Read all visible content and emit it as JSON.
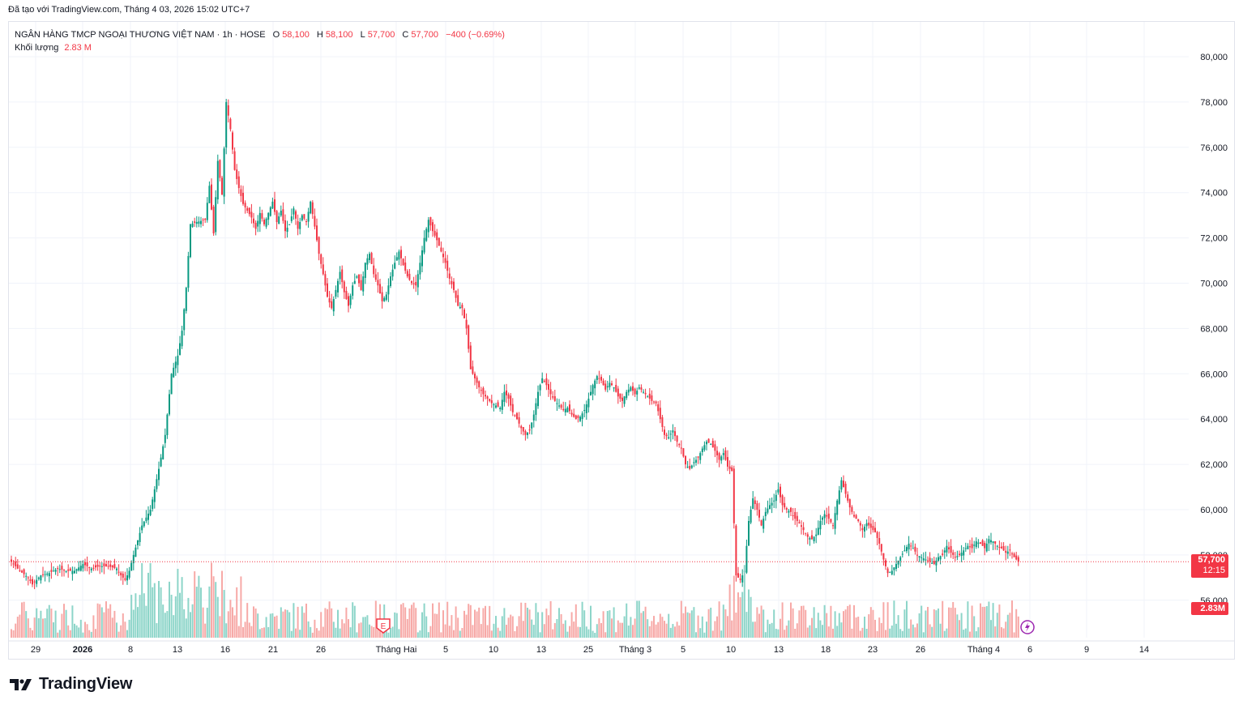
{
  "header": {
    "credit": "Đã tạo với TradingView.com, Tháng 4 03, 2026 15:02 UTC+7"
  },
  "legend": {
    "symbol": "NGÂN HÀNG TMCP NGOẠI THƯƠNG VIỆT NAM · 1h · HOSE",
    "o_label": "O",
    "o_value": "58,100",
    "h_label": "H",
    "h_value": "58,100",
    "l_label": "L",
    "l_value": "57,700",
    "c_label": "C",
    "c_value": "57,700",
    "change": "−400 (−0.69%)",
    "volume_label": "Khối lượng",
    "volume_value": "2.83 M"
  },
  "price_tags": {
    "last_price": "57,700",
    "countdown": "12:15",
    "volume": "2.83M"
  },
  "footer": {
    "brand": "TradingView"
  },
  "colors": {
    "up": "#089981",
    "down": "#f23645",
    "vol_up": "#8dd5c9",
    "vol_down": "#f7a9a7",
    "grid": "#f0f3fa",
    "axis_text": "#131722"
  },
  "chart_data": {
    "type": "candlestick",
    "y_axis_ticks": [
      "80,000",
      "78,000",
      "76,000",
      "74,000",
      "72,000",
      "70,000",
      "68,000",
      "66,000",
      "64,000",
      "62,000",
      "60,000",
      "58,000",
      "56,000"
    ],
    "y_tick_values": [
      80000,
      78000,
      76000,
      74000,
      72000,
      70000,
      68000,
      66000,
      64000,
      62000,
      60000,
      58000,
      56000
    ],
    "ylim": [
      55200,
      81100
    ],
    "x_axis_labels": [
      "29",
      "2026",
      "8",
      "13",
      "16",
      "21",
      "26",
      "Tháng Hai",
      "5",
      "10",
      "13",
      "25",
      "Tháng 3",
      "5",
      "10",
      "13",
      "18",
      "23",
      "26",
      "Tháng 4",
      "6",
      "9",
      "14"
    ],
    "x_label_bold": [
      "2026"
    ],
    "close_path": [
      [
        0,
        57700
      ],
      [
        4,
        57300
      ],
      [
        8,
        57000
      ],
      [
        10,
        56700
      ],
      [
        14,
        57100
      ],
      [
        18,
        57200
      ],
      [
        22,
        57400
      ],
      [
        26,
        57300
      ],
      [
        30,
        57300
      ],
      [
        34,
        57600
      ],
      [
        38,
        57400
      ],
      [
        42,
        57500
      ],
      [
        46,
        57500
      ],
      [
        50,
        57400
      ],
      [
        52,
        57100
      ],
      [
        54,
        56900
      ],
      [
        56,
        57300
      ],
      [
        58,
        58000
      ],
      [
        62,
        59300
      ],
      [
        66,
        60000
      ],
      [
        70,
        61800
      ],
      [
        73,
        63300
      ],
      [
        76,
        66000
      ],
      [
        79,
        66800
      ],
      [
        81,
        67900
      ],
      [
        83,
        69800
      ],
      [
        85,
        72600
      ],
      [
        88,
        72700
      ],
      [
        92,
        72800
      ],
      [
        94,
        74300
      ],
      [
        96,
        72200
      ],
      [
        98,
        75400
      ],
      [
        100,
        73900
      ],
      [
        102,
        78000
      ],
      [
        104,
        76800
      ],
      [
        106,
        75000
      ],
      [
        108,
        74200
      ],
      [
        110,
        73500
      ],
      [
        112,
        73200
      ],
      [
        114,
        72900
      ],
      [
        116,
        72400
      ],
      [
        118,
        73100
      ],
      [
        120,
        72600
      ],
      [
        124,
        73600
      ],
      [
        126,
        72700
      ],
      [
        128,
        73200
      ],
      [
        130,
        72300
      ],
      [
        132,
        72600
      ],
      [
        134,
        73300
      ],
      [
        136,
        72400
      ],
      [
        138,
        73000
      ],
      [
        140,
        72700
      ],
      [
        142,
        73600
      ],
      [
        144,
        72500
      ],
      [
        146,
        71300
      ],
      [
        148,
        70400
      ],
      [
        150,
        69400
      ],
      [
        152,
        68900
      ],
      [
        154,
        69700
      ],
      [
        156,
        70500
      ],
      [
        158,
        69600
      ],
      [
        160,
        69000
      ],
      [
        162,
        69900
      ],
      [
        164,
        70300
      ],
      [
        166,
        69700
      ],
      [
        168,
        70900
      ],
      [
        170,
        71300
      ],
      [
        172,
        70400
      ],
      [
        174,
        69900
      ],
      [
        176,
        69200
      ],
      [
        178,
        69500
      ],
      [
        180,
        70300
      ],
      [
        182,
        70900
      ],
      [
        184,
        71400
      ],
      [
        186,
        70800
      ],
      [
        188,
        70300
      ],
      [
        190,
        70000
      ],
      [
        192,
        69900
      ],
      [
        194,
        70900
      ],
      [
        196,
        72000
      ],
      [
        198,
        72800
      ],
      [
        200,
        72300
      ],
      [
        202,
        71900
      ],
      [
        204,
        71400
      ],
      [
        206,
        70900
      ],
      [
        208,
        70200
      ],
      [
        210,
        69700
      ],
      [
        212,
        69000
      ],
      [
        214,
        68900
      ],
      [
        216,
        68000
      ],
      [
        218,
        66200
      ],
      [
        220,
        65800
      ],
      [
        222,
        65400
      ],
      [
        224,
        65100
      ],
      [
        226,
        64900
      ],
      [
        228,
        64700
      ],
      [
        230,
        64600
      ],
      [
        232,
        64500
      ],
      [
        234,
        65200
      ],
      [
        236,
        64900
      ],
      [
        238,
        64300
      ],
      [
        240,
        64000
      ],
      [
        242,
        63600
      ],
      [
        244,
        63300
      ],
      [
        246,
        63500
      ],
      [
        248,
        64200
      ],
      [
        250,
        65200
      ],
      [
        252,
        65800
      ],
      [
        254,
        65500
      ],
      [
        256,
        65100
      ],
      [
        258,
        64800
      ],
      [
        260,
        64600
      ],
      [
        262,
        64400
      ],
      [
        264,
        64500
      ],
      [
        266,
        64200
      ],
      [
        268,
        64000
      ],
      [
        270,
        64100
      ],
      [
        272,
        64400
      ],
      [
        274,
        64900
      ],
      [
        276,
        65500
      ],
      [
        278,
        65900
      ],
      [
        280,
        65700
      ],
      [
        282,
        65300
      ],
      [
        284,
        65600
      ],
      [
        286,
        65400
      ],
      [
        288,
        65000
      ],
      [
        290,
        64800
      ],
      [
        292,
        65200
      ],
      [
        294,
        65400
      ],
      [
        296,
        65100
      ],
      [
        298,
        65400
      ],
      [
        300,
        65200
      ],
      [
        302,
        65000
      ],
      [
        304,
        64800
      ],
      [
        306,
        64700
      ],
      [
        308,
        64000
      ],
      [
        310,
        63300
      ],
      [
        312,
        63200
      ],
      [
        314,
        63500
      ],
      [
        316,
        63000
      ],
      [
        318,
        62700
      ],
      [
        320,
        62000
      ],
      [
        322,
        61800
      ],
      [
        324,
        62100
      ],
      [
        326,
        62300
      ],
      [
        328,
        62700
      ],
      [
        330,
        63000
      ],
      [
        332,
        62900
      ],
      [
        334,
        62600
      ],
      [
        336,
        62200
      ],
      [
        338,
        62500
      ],
      [
        340,
        61900
      ],
      [
        342,
        61700
      ],
      [
        344,
        57100
      ],
      [
        346,
        56900
      ],
      [
        348,
        57300
      ],
      [
        350,
        59500
      ],
      [
        352,
        60500
      ],
      [
        354,
        60000
      ],
      [
        356,
        59300
      ],
      [
        358,
        59900
      ],
      [
        360,
        60200
      ],
      [
        362,
        60400
      ],
      [
        364,
        60900
      ],
      [
        366,
        60200
      ],
      [
        368,
        60000
      ],
      [
        370,
        59900
      ],
      [
        372,
        59600
      ],
      [
        374,
        59400
      ],
      [
        376,
        59100
      ],
      [
        378,
        58800
      ],
      [
        380,
        58700
      ],
      [
        382,
        58900
      ],
      [
        384,
        59500
      ],
      [
        386,
        59800
      ],
      [
        388,
        59600
      ],
      [
        390,
        59300
      ],
      [
        392,
        60400
      ],
      [
        394,
        61300
      ],
      [
        396,
        60700
      ],
      [
        398,
        60100
      ],
      [
        400,
        59700
      ],
      [
        402,
        59500
      ],
      [
        404,
        59100
      ],
      [
        406,
        59400
      ],
      [
        408,
        59200
      ],
      [
        410,
        59000
      ],
      [
        412,
        58500
      ],
      [
        414,
        57800
      ],
      [
        416,
        57200
      ],
      [
        418,
        57300
      ],
      [
        420,
        57600
      ],
      [
        422,
        57900
      ],
      [
        424,
        58200
      ],
      [
        426,
        58500
      ],
      [
        428,
        58300
      ],
      [
        430,
        58000
      ],
      [
        432,
        57900
      ],
      [
        434,
        57800
      ],
      [
        436,
        57700
      ],
      [
        438,
        57600
      ],
      [
        440,
        57900
      ],
      [
        442,
        58000
      ],
      [
        444,
        58400
      ],
      [
        446,
        58100
      ],
      [
        448,
        57900
      ],
      [
        450,
        58000
      ],
      [
        452,
        58200
      ],
      [
        454,
        58400
      ],
      [
        456,
        58300
      ],
      [
        458,
        58600
      ],
      [
        460,
        58500
      ],
      [
        462,
        58300
      ],
      [
        464,
        58700
      ],
      [
        466,
        58600
      ],
      [
        468,
        58400
      ],
      [
        470,
        58300
      ],
      [
        472,
        58100
      ],
      [
        474,
        58200
      ],
      [
        476,
        57900
      ],
      [
        478,
        57700
      ]
    ]
  }
}
